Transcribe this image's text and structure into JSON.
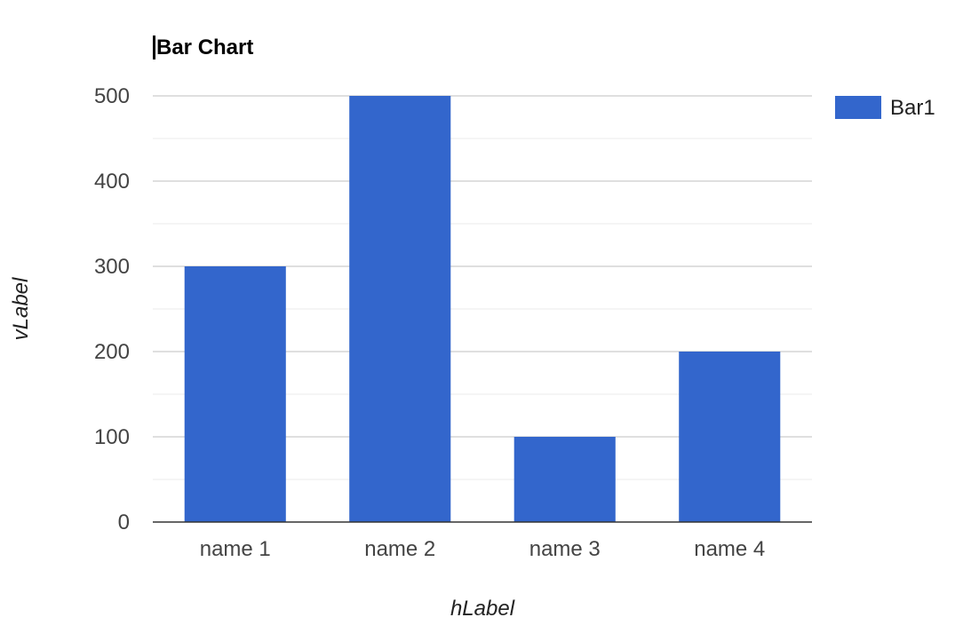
{
  "chart_data": {
    "type": "bar",
    "title": "Bar Chart",
    "xlabel": "hLabel",
    "ylabel": "vLabel",
    "categories": [
      "name 1",
      "name 2",
      "name 3",
      "name 4"
    ],
    "series": [
      {
        "name": "Bar1",
        "values": [
          300,
          500,
          100,
          200
        ],
        "color": "#3366cc"
      }
    ],
    "ylim": [
      0,
      500
    ],
    "yticks": [
      0,
      100,
      200,
      300,
      400,
      500
    ],
    "grid": true,
    "legend_position": "right"
  }
}
